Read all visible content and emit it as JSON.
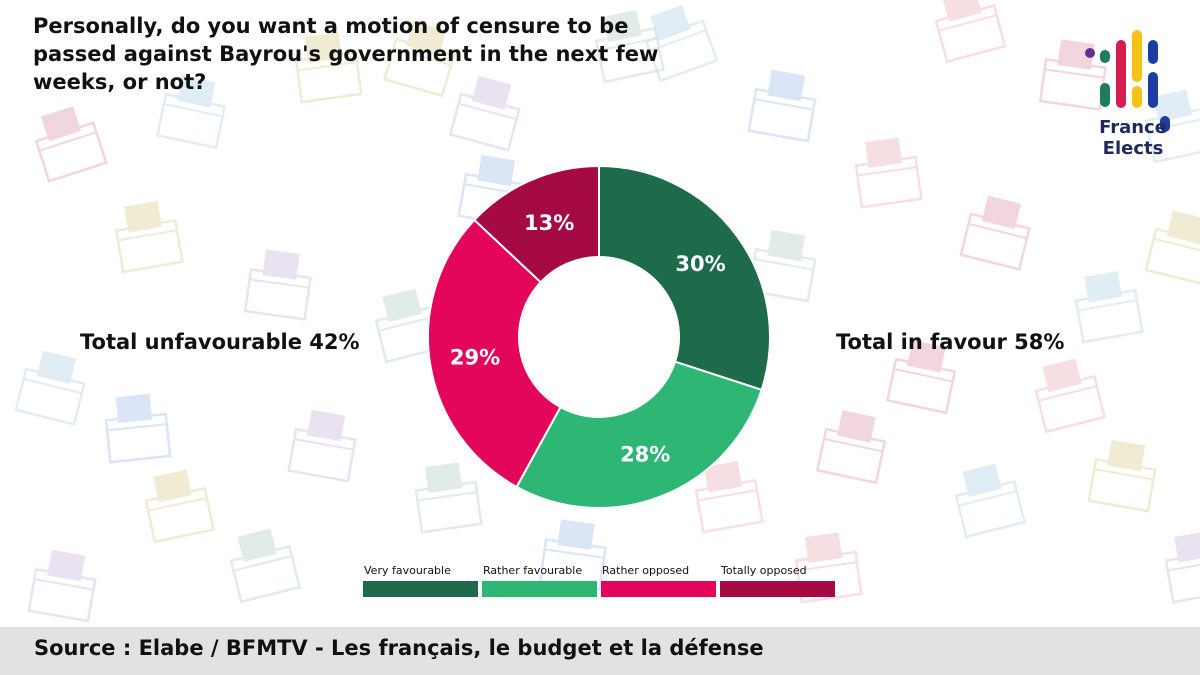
{
  "title": "Personally, do you want a motion of censure to be passed against Bayrou's government in the next few weeks, or not?",
  "logo": {
    "line1": "France",
    "line2": "Elects"
  },
  "totals": {
    "unfavourable": "Total unfavourable 42%",
    "favour": "Total in favour 58%"
  },
  "source": "Source : Elabe / BFMTV - Les français, le budget et la défense",
  "colors": {
    "very_favourable": "#1e6b4c",
    "rather_favourable": "#2eb675",
    "rather_opposed": "#e3065a",
    "totally_opposed": "#a50a45"
  },
  "chart_data": {
    "type": "pie",
    "donut": true,
    "categories": [
      "Very favourable",
      "Rather favourable",
      "Rather opposed",
      "Totally opposed"
    ],
    "values": [
      30,
      28,
      29,
      13
    ],
    "data_labels": [
      "30%",
      "28%",
      "29%",
      "13%"
    ],
    "legend": "bottom"
  }
}
